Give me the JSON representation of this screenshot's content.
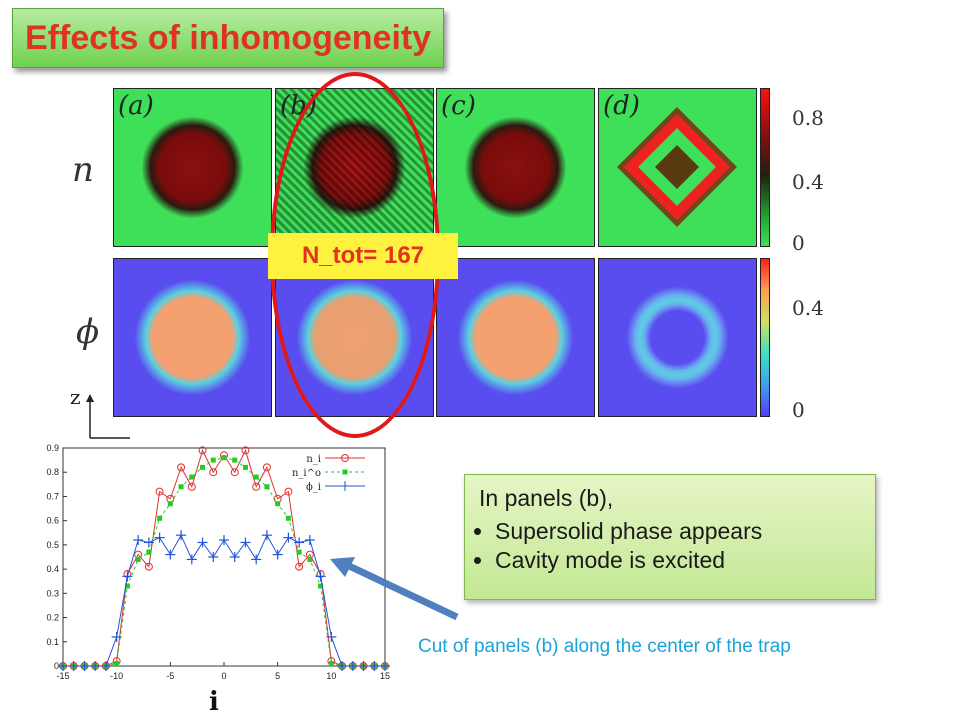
{
  "title": "Effects of inhomogeneity",
  "panel_labels": [
    "(a)",
    "(b)",
    "(c)",
    "(d)"
  ],
  "row_labels": {
    "top": "n",
    "bottom": "ϕ"
  },
  "colorbar_top_ticks": [
    "0.8",
    "0.4",
    "0"
  ],
  "colorbar_bottom_ticks": [
    "0.4",
    "0"
  ],
  "axis_label_z": "z",
  "ntot_label": "N_tot= 167",
  "callout": {
    "heading": "In panels (b),",
    "bullets": [
      "Supersolid phase appears",
      "Cavity mode is excited"
    ]
  },
  "caption": "Cut of panels (b) along the center of the trap",
  "colors": {
    "title_red": "#e0331f",
    "green_panel": "#3ee05a",
    "purple_panel": "#5a4df0",
    "highlight": "#e01818",
    "caption_blue": "#1aa3d8"
  },
  "chart_data": {
    "type": "line",
    "xlabel": "i",
    "ylabel": "",
    "xlim": [
      -15,
      15
    ],
    "ylim": [
      0,
      0.9
    ],
    "x_ticks": [
      -15,
      -10,
      -5,
      0,
      5,
      10,
      15
    ],
    "y_ticks": [
      0,
      0.1,
      0.2,
      0.3,
      0.4,
      0.5,
      0.6,
      0.7,
      0.8,
      0.9
    ],
    "legend_position": "top-right",
    "x": [
      -15,
      -14,
      -13,
      -12,
      -11,
      -10,
      -9,
      -8,
      -7,
      -6,
      -5,
      -4,
      -3,
      -2,
      -1,
      0,
      1,
      2,
      3,
      4,
      5,
      6,
      7,
      8,
      9,
      10,
      11,
      12,
      13,
      14,
      15
    ],
    "series": [
      {
        "name": "n_i",
        "color": "#e03030",
        "marker": "circle",
        "values": [
          0,
          0,
          0,
          0,
          0,
          0.02,
          0.38,
          0.46,
          0.41,
          0.72,
          0.69,
          0.82,
          0.74,
          0.89,
          0.8,
          0.87,
          0.8,
          0.89,
          0.74,
          0.82,
          0.69,
          0.72,
          0.41,
          0.46,
          0.38,
          0.02,
          0,
          0,
          0,
          0,
          0
        ]
      },
      {
        "name": "n_i^o",
        "color": "#22cc22",
        "marker": "square",
        "values": [
          0,
          0,
          0,
          0,
          0,
          0.01,
          0.33,
          0.44,
          0.47,
          0.61,
          0.67,
          0.74,
          0.78,
          0.82,
          0.85,
          0.86,
          0.85,
          0.82,
          0.78,
          0.74,
          0.67,
          0.61,
          0.47,
          0.44,
          0.33,
          0.01,
          0,
          0,
          0,
          0,
          0
        ]
      },
      {
        "name": "ϕ_i",
        "color": "#2255dd",
        "marker": "plus",
        "values": [
          0,
          0,
          0,
          0,
          0,
          0.12,
          0.37,
          0.52,
          0.51,
          0.53,
          0.46,
          0.54,
          0.44,
          0.51,
          0.45,
          0.52,
          0.45,
          0.51,
          0.44,
          0.54,
          0.46,
          0.53,
          0.51,
          0.52,
          0.37,
          0.12,
          0,
          0,
          0,
          0,
          0
        ]
      }
    ]
  }
}
